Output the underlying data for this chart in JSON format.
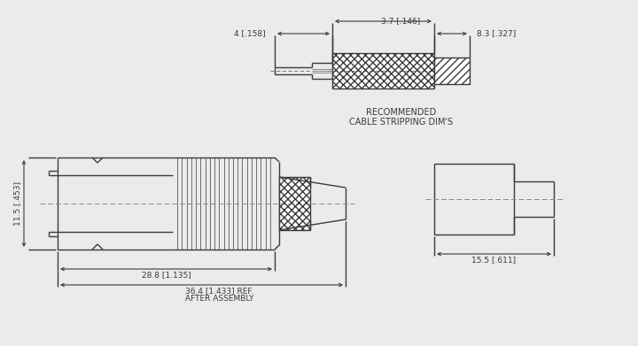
{
  "bg_color": "#ebebeb",
  "line_color": "#3a3a3a",
  "note_line1": "RECOMMENDED",
  "note_line2": "CABLE STRIPPING DIM'S",
  "dim_28_8": "28.8 [1.135]",
  "dim_36_4": "36.4 [1.433] REF.",
  "dim_after_assembly": "AFTER ASSEMBLY",
  "dim_15_5": "15.5 [.611]",
  "dim_11_5": "11.5 [.453]",
  "dim_4": "4 [.158]",
  "dim_3_7": "3.7 [.146]",
  "dim_8_3": "8.3 [.327]"
}
